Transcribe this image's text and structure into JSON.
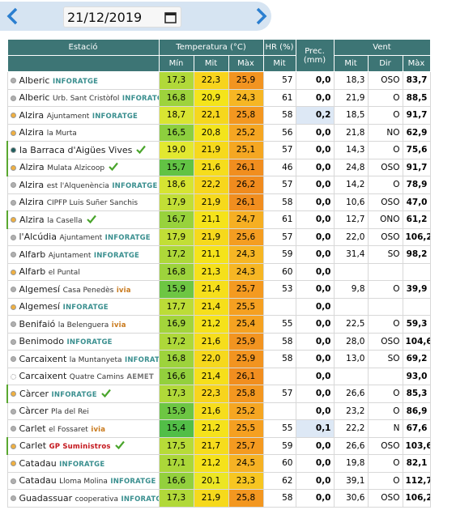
{
  "header": {
    "date": "21/12/2019"
  },
  "table": {
    "columns": {
      "station": "Estació",
      "temperature": "Temperatura (°C)",
      "humidity": "HR (%)",
      "precipitation": "Prec. (mm)",
      "wind": "Vent",
      "sub": {
        "tmin": "Mín",
        "tmit": "Mit",
        "tmax": "Màx",
        "hr": "Mit",
        "vmit": "Mit",
        "dir": "Dir",
        "vmax": "Màx"
      }
    },
    "rows": [
      {
        "name": "Alberic",
        "brand": "INFORATGE",
        "brand_color": "#3a8f8f",
        "dot": "#b0b0b0",
        "check": false,
        "tmin": "17,3",
        "tmit": "22,3",
        "tmax": "25,9",
        "hr": "57",
        "prec": "0,0",
        "vmit": "18,3",
        "dir": "OSO",
        "vmax": "83,7"
      },
      {
        "name": "Alberic",
        "sub": "Urb. Sant Cristòfol",
        "brand": "INFORATGE",
        "brand_color": "#3a8f8f",
        "dot": "#b0b0b0",
        "check": false,
        "tmin": "16,8",
        "tmit": "20,9",
        "tmax": "24,3",
        "hr": "61",
        "prec": "0,0",
        "vmit": "21,9",
        "dir": "O",
        "vmax": "88,5"
      },
      {
        "name": "Alzira",
        "sub": "Ajuntament",
        "brand": "INFORATGE",
        "brand_color": "#3a8f8f",
        "dot": "#f0b040",
        "check": false,
        "tmin": "18,7",
        "tmit": "22,1",
        "tmax": "25,8",
        "hr": "58",
        "prec": "0,2",
        "vmit": "18,5",
        "dir": "O",
        "vmax": "91,7"
      },
      {
        "name": "Alzira",
        "sub": "la Murta",
        "dot": "#f0b040",
        "check": false,
        "tmin": "16,5",
        "tmit": "20,8",
        "tmax": "25,2",
        "hr": "56",
        "prec": "0,0",
        "vmit": "21,8",
        "dir": "NO",
        "vmax": "62,9"
      },
      {
        "name": "la Barraca d'Aigües Vives",
        "dot": "#1f5e5e",
        "check": true,
        "tmin": "19,0",
        "tmit": "21,9",
        "tmax": "25,1",
        "hr": "57",
        "prec": "0,0",
        "vmit": "14,3",
        "dir": "O",
        "vmax": "75,6"
      },
      {
        "name": "Alzira",
        "sub": "Mulata Alzicoop",
        "dot": "#f0b040",
        "check": true,
        "tmin": "15,7",
        "tmit": "21,6",
        "tmax": "26,1",
        "hr": "46",
        "prec": "0,0",
        "vmit": "24,8",
        "dir": "OSO",
        "vmax": "91,7"
      },
      {
        "name": "Alzira",
        "sub": "est l'Alquenència",
        "brand": "INFORATGE",
        "brand_color": "#3a8f8f",
        "dot": "#b0b0b0",
        "check": false,
        "tmin": "18,6",
        "tmit": "22,2",
        "tmax": "26,2",
        "hr": "57",
        "prec": "0,0",
        "vmit": "14,2",
        "dir": "O",
        "vmax": "78,9"
      },
      {
        "name": "Alzira",
        "sub": "CIPFP Luis Suñer Sanchis",
        "dot": "#b0b0b0",
        "check": false,
        "tmin": "17,9",
        "tmit": "21,9",
        "tmax": "26,1",
        "hr": "58",
        "prec": "0,0",
        "vmit": "10,6",
        "dir": "OSO",
        "vmax": "47,0"
      },
      {
        "name": "Alzira",
        "sub": "la Casella",
        "dot": "#f0b040",
        "check": true,
        "tmin": "16,7",
        "tmit": "21,1",
        "tmax": "24,7",
        "hr": "61",
        "prec": "0,0",
        "vmit": "12,7",
        "dir": "ONO",
        "vmax": "61,2"
      },
      {
        "name": "l'Alcúdia",
        "sub": "Ajuntament",
        "brand": "INFORATGE",
        "brand_color": "#3a8f8f",
        "dot": "#b0b0b0",
        "check": false,
        "tmin": "17,9",
        "tmit": "21,9",
        "tmax": "25,6",
        "hr": "57",
        "prec": "0,0",
        "vmit": "22,0",
        "dir": "OSO",
        "vmax": "106,2"
      },
      {
        "name": "Alfarb",
        "sub": "Ajuntament",
        "brand": "INFORATGE",
        "brand_color": "#3a8f8f",
        "dot": "#b0b0b0",
        "check": false,
        "tmin": "17,2",
        "tmit": "21,1",
        "tmax": "24,3",
        "hr": "59",
        "prec": "0,0",
        "vmit": "31,4",
        "dir": "SO",
        "vmax": "98,2"
      },
      {
        "name": "Alfarb",
        "sub": "el Puntal",
        "dot": "#f0b040",
        "check": false,
        "tmin": "16,8",
        "tmit": "21,3",
        "tmax": "24,3",
        "hr": "60",
        "prec": "0,0",
        "vmit": null,
        "dir": null,
        "vmax": null
      },
      {
        "name": "Algemesí",
        "sub": "Casa Penedès",
        "brand": "ivia",
        "brand_color": "#c8781a",
        "dot": "#b0b0b0",
        "check": false,
        "tmin": "15,9",
        "tmit": "21,4",
        "tmax": "25,7",
        "hr": "53",
        "prec": "0,0",
        "vmit": "9,8",
        "dir": "O",
        "vmax": "39,9"
      },
      {
        "name": "Algemesí",
        "brand": "INFORATGE",
        "brand_color": "#3a8f8f",
        "dot": "#f0b040",
        "check": false,
        "tmin": "17,7",
        "tmit": "21,4",
        "tmax": "25,5",
        "hr": null,
        "prec": "0,0",
        "vmit": null,
        "dir": null,
        "vmax": null
      },
      {
        "name": "Benifaió",
        "sub": "la Belenguera",
        "brand": "ivia",
        "brand_color": "#c8781a",
        "dot": "#b0b0b0",
        "check": false,
        "tmin": "16,9",
        "tmit": "21,2",
        "tmax": "25,4",
        "hr": "55",
        "prec": "0,0",
        "vmit": "22,5",
        "dir": "O",
        "vmax": "59,3"
      },
      {
        "name": "Benimodo",
        "brand": "INFORATGE",
        "brand_color": "#3a8f8f",
        "dot": "#b0b0b0",
        "check": false,
        "tmin": "17,2",
        "tmit": "21,6",
        "tmax": "25,9",
        "hr": "58",
        "prec": "0,0",
        "vmit": "28,0",
        "dir": "OSO",
        "vmax": "104,6"
      },
      {
        "name": "Carcaixent",
        "sub": "la Muntanyeta",
        "brand": "INFORATGE",
        "brand_color": "#3a8f8f",
        "dot": "#b0b0b0",
        "check": false,
        "tmin": "16,8",
        "tmit": "22,0",
        "tmax": "25,9",
        "hr": "58",
        "prec": "0,0",
        "vmit": "13,0",
        "dir": "SO",
        "vmax": "69,2"
      },
      {
        "name": "Carcaixent",
        "sub": "Quatre Camins",
        "brand": "AEMET",
        "brand_color": "#777777",
        "dot": "#ffffff",
        "check": false,
        "tmin": "16,6",
        "tmit": "21,4",
        "tmax": "26,1",
        "hr": null,
        "prec": "0,0",
        "vmit": null,
        "dir": null,
        "vmax": "93,0"
      },
      {
        "name": "Càrcer",
        "brand": "INFORATGE",
        "brand_color": "#3a8f8f",
        "dot": "#f0b040",
        "check": true,
        "tmin": "17,3",
        "tmit": "22,3",
        "tmax": "25,8",
        "hr": "57",
        "prec": "0,0",
        "vmit": "26,6",
        "dir": "O",
        "vmax": "85,3"
      },
      {
        "name": "Càrcer",
        "sub": "Pla del Rei",
        "dot": "#b0b0b0",
        "check": false,
        "tmin": "15,9",
        "tmit": "21,6",
        "tmax": "25,2",
        "hr": null,
        "prec": "0,0",
        "vmit": "23,2",
        "dir": "O",
        "vmax": "86,9"
      },
      {
        "name": "Carlet",
        "sub": "el Fossaret",
        "brand": "ivia",
        "brand_color": "#c8781a",
        "dot": "#b0b0b0",
        "check": false,
        "tmin": "15,4",
        "tmit": "21,2",
        "tmax": "25,5",
        "hr": "55",
        "prec": "0,1",
        "vmit": "22,2",
        "dir": "N",
        "vmax": "67,6"
      },
      {
        "name": "Carlet",
        "brand": "GP Suministros",
        "brand_color": "#c4161c",
        "dot": "#f0b040",
        "check": true,
        "tmin": "17,5",
        "tmit": "21,7",
        "tmax": "25,7",
        "hr": "59",
        "prec": "0,0",
        "vmit": "26,6",
        "dir": "OSO",
        "vmax": "103,6"
      },
      {
        "name": "Catadau",
        "brand": "INFORATGE",
        "brand_color": "#3a8f8f",
        "dot": "#f0b040",
        "check": false,
        "tmin": "17,1",
        "tmit": "21,2",
        "tmax": "24,5",
        "hr": "60",
        "prec": "0,0",
        "vmit": "19,8",
        "dir": "O",
        "vmax": "82,1"
      },
      {
        "name": "Catadau",
        "sub": "Lloma Molina",
        "brand": "INFORATGE",
        "brand_color": "#3a8f8f",
        "dot": "#b0b0b0",
        "check": false,
        "tmin": "16,6",
        "tmit": "20,1",
        "tmax": "23,3",
        "hr": "62",
        "prec": "0,0",
        "vmit": "39,1",
        "dir": "O",
        "vmax": "112,7"
      },
      {
        "name": "Guadassuar",
        "sub": "cooperativa",
        "brand": "INFORATGE",
        "brand_color": "#3a8f8f",
        "dot": "#b0b0b0",
        "check": false,
        "tmin": "17,3",
        "tmit": "21,9",
        "tmax": "25,8",
        "hr": "58",
        "prec": "0,0",
        "vmit": "30,6",
        "dir": "OSO",
        "vmax": "106,2"
      }
    ]
  }
}
